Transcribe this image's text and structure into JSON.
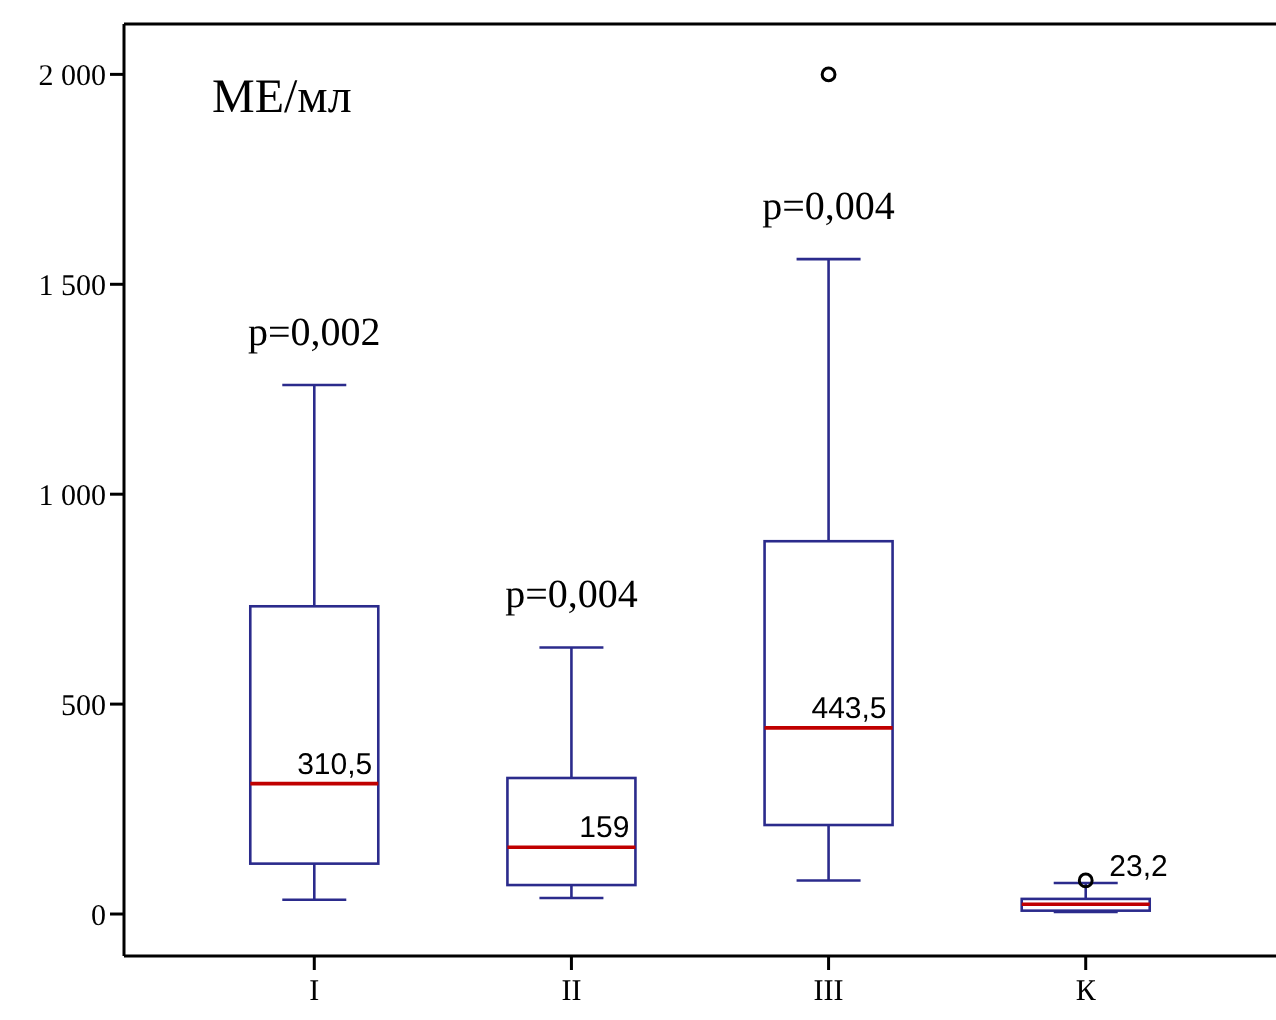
{
  "chart_data": {
    "type": "box",
    "categories": [
      "I",
      "II",
      "III",
      "К"
    ],
    "series": [
      {
        "color": "#2b2b8c",
        "boxes": [
          {
            "low": 34,
            "q1": 120,
            "median": 310.5,
            "q3": 733,
            "high": 1260
          },
          {
            "low": 38,
            "q1": 69,
            "median": 159,
            "q3": 324,
            "high": 635
          },
          {
            "low": 80,
            "q1": 212,
            "median": 443.5,
            "q3": 888,
            "high": 1560,
            "outliers": [
              2000
            ]
          },
          {
            "low": 5,
            "q1": 8,
            "median": 23.2,
            "q3": 36,
            "high": 74,
            "outliers": [
              80
            ]
          }
        ]
      }
    ],
    "ylim": [
      -100,
      2120
    ],
    "yticks": [
      0,
      500,
      {
        "value": 1000,
        "label": "1 000"
      },
      {
        "value": 1500,
        "label": "1 500"
      },
      {
        "value": 2000,
        "label": "2 000"
      }
    ],
    "grid": false,
    "annotations": [
      "МЕ/мл",
      "p=0,002",
      "p=0,004",
      "p=0,004",
      {
        "text": "310,5",
        "x": "I",
        "y": 310.5
      },
      {
        "text": "159",
        "x": "II",
        "y": 159
      },
      {
        "text": "443,5",
        "x": "III",
        "y": 443.5
      },
      {
        "text": "23,2",
        "x": "К",
        "y": 23.2
      }
    ]
  }
}
